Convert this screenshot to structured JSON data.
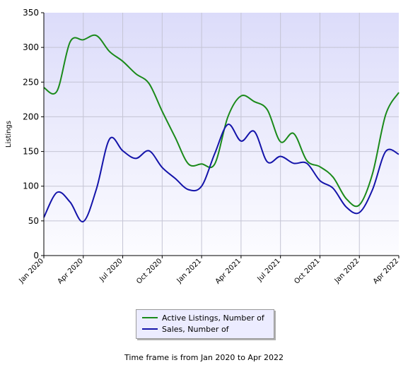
{
  "chart_data": {
    "type": "line",
    "ylabel": "Listings",
    "ylim": [
      0,
      350
    ],
    "yticks": [
      "0",
      "50",
      "100",
      "150",
      "200",
      "250",
      "300",
      "350"
    ],
    "xticks": [
      "Jan 2020",
      "Apr 2020",
      "Jul 2020",
      "Oct 2020",
      "Jan 2021",
      "Apr 2021",
      "Jul 2021",
      "Oct 2021",
      "Jan 2022",
      "Apr 2022"
    ],
    "x": [
      "Jan 2020",
      "Feb 2020",
      "Mar 2020",
      "Apr 2020",
      "May 2020",
      "Jun 2020",
      "Jul 2020",
      "Aug 2020",
      "Sep 2020",
      "Oct 2020",
      "Nov 2020",
      "Dec 2020",
      "Jan 2021",
      "Feb 2021",
      "Mar 2021",
      "Apr 2021",
      "May 2021",
      "Jun 2021",
      "Jul 2021",
      "Aug 2021",
      "Sep 2021",
      "Oct 2021",
      "Nov 2021",
      "Dec 2021",
      "Jan 2022",
      "Feb 2022",
      "Mar 2022",
      "Apr 2022"
    ],
    "grid": true,
    "legend_position": "bottom",
    "series": [
      {
        "name": "Active Listings, Number of",
        "color": "#1a8a1a",
        "values": [
          242,
          237,
          308,
          311,
          317,
          294,
          280,
          262,
          248,
          208,
          170,
          132,
          132,
          132,
          200,
          230,
          222,
          210,
          164,
          176,
          137,
          128,
          113,
          82,
          73,
          118,
          203,
          235
        ]
      },
      {
        "name": "Sales, Number of",
        "color": "#1414aa",
        "values": [
          55,
          91,
          77,
          49,
          96,
          168,
          151,
          140,
          151,
          127,
          111,
          95,
          100,
          147,
          189,
          165,
          179,
          135,
          143,
          133,
          133,
          108,
          97,
          70,
          62,
          95,
          150,
          146
        ]
      }
    ]
  },
  "footer": "Time frame is from Jan 2020 to Apr 2022"
}
